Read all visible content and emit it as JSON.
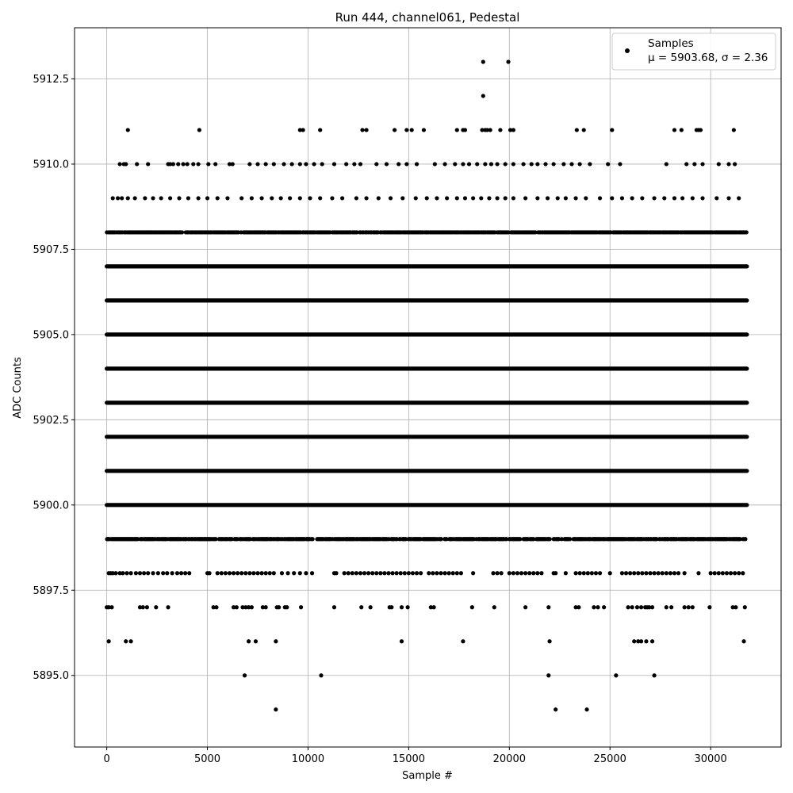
{
  "chart_data": {
    "type": "scatter",
    "title": "Run 444, channel061, Pedestal",
    "xlabel": "Sample #",
    "ylabel": "ADC Counts",
    "xlim": [
      -1600,
      33500
    ],
    "ylim": [
      5892.9,
      5914.0
    ],
    "x_ticks": [
      0,
      5000,
      10000,
      15000,
      20000,
      25000,
      30000
    ],
    "x_tick_labels": [
      "0",
      "5000",
      "10000",
      "15000",
      "20000",
      "25000",
      "30000"
    ],
    "y_ticks": [
      5895.0,
      5897.5,
      5900.0,
      5902.5,
      5905.0,
      5907.5,
      5910.0,
      5912.5
    ],
    "y_tick_labels": [
      "5895.0",
      "5897.5",
      "5900.0",
      "5902.5",
      "5905.0",
      "5907.5",
      "5910.0",
      "5912.5"
    ],
    "grid": true,
    "legend": {
      "position": "top-right",
      "entries": [
        {
          "label": "Samples",
          "stats": "μ = 5903.68, σ = 2.36"
        }
      ]
    },
    "series": [
      {
        "name": "Samples",
        "color": "#000000",
        "x_range": [
          0,
          31800
        ],
        "dense_levels": [
          5900,
          5901,
          5902,
          5903,
          5904,
          5905,
          5906,
          5907
        ],
        "medium_levels": [
          5899,
          5908
        ],
        "sparse_levels": {
          "5898": [
            100,
            200,
            300,
            450,
            650,
            800,
            1000,
            1200,
            1450,
            1650,
            1850,
            2050,
            2300,
            2550,
            2800,
            3000,
            3250,
            3500,
            3700,
            3900,
            4100,
            5000,
            5100,
            5500,
            5700,
            5900,
            6100,
            6300,
            6500,
            6700,
            6900,
            7100,
            7300,
            7500,
            7700,
            7900,
            8100,
            8300,
            8700,
            9000,
            9300,
            9600,
            9900,
            10200,
            11300,
            11400,
            11800,
            12000,
            12200,
            12400,
            12600,
            12800,
            13000,
            13200,
            13400,
            13600,
            13800,
            14000,
            14200,
            14400,
            14600,
            14800,
            15000,
            15200,
            15400,
            15600,
            16000,
            16200,
            16400,
            16600,
            16800,
            17000,
            17200,
            17400,
            17600,
            18200,
            19200,
            19400,
            19600,
            20000,
            20200,
            20400,
            20600,
            20800,
            21000,
            21200,
            21400,
            21600,
            22200,
            22300,
            22800,
            23300,
            23500,
            23700,
            23900,
            24100,
            24300,
            24500,
            25000,
            25600,
            25800,
            26000,
            26200,
            26400,
            26600,
            26800,
            27000,
            27200,
            27400,
            27600,
            27800,
            28000,
            28200,
            28400,
            28700,
            29400,
            30000,
            30200,
            30400,
            30600,
            30800,
            31000,
            31200,
            31400,
            31600
          ],
          "5897": [
            0,
            100,
            250,
            1650,
            1800,
            2000,
            2450,
            3050,
            5300,
            5450,
            6300,
            6450,
            6750,
            6900,
            7050,
            7200,
            7750,
            7900,
            8450,
            8550,
            8850,
            8950,
            9650,
            11300,
            12650,
            13100,
            14050,
            14150,
            14650,
            14950,
            16100,
            16250,
            18150,
            19250,
            20800,
            21950,
            23300,
            23450,
            24200,
            24400,
            24700,
            25900,
            26100,
            26350,
            26550,
            26750,
            26850,
            26950,
            27100,
            27800,
            28050,
            28700,
            28900,
            29100,
            29950,
            31100,
            31250,
            31700
          ],
          "5896": [
            100,
            950,
            1200,
            7050,
            7400,
            8400,
            14650,
            17700,
            22000,
            26200,
            26400,
            26550,
            26800,
            27100,
            31650
          ],
          "5895": [
            6850,
            10650,
            21950,
            25300,
            27200
          ],
          "5894": [
            8400,
            22300,
            23850
          ],
          "5909": [
            300,
            550,
            750,
            1050,
            1400,
            1900,
            2300,
            2700,
            3150,
            3600,
            4050,
            4550,
            5000,
            5500,
            6000,
            6700,
            7200,
            7700,
            8200,
            8650,
            9100,
            9600,
            10100,
            10600,
            11200,
            11700,
            12400,
            12900,
            13500,
            14100,
            14700,
            15350,
            15900,
            16400,
            16900,
            17400,
            17800,
            18200,
            18600,
            19000,
            19400,
            19800,
            20200,
            20800,
            21400,
            21900,
            22400,
            22800,
            23300,
            23800,
            24500,
            25100,
            25600,
            26100,
            26600,
            27200,
            27700,
            28200,
            28600,
            29100,
            29600,
            30300,
            30900,
            31400
          ],
          "5910": [
            650,
            850,
            950,
            1500,
            2050,
            3050,
            3150,
            3300,
            3550,
            3800,
            4000,
            4300,
            4550,
            5050,
            5400,
            6100,
            6250,
            7100,
            7500,
            7900,
            8300,
            8800,
            9200,
            9600,
            9900,
            10300,
            10700,
            11300,
            11900,
            12300,
            12600,
            13400,
            13900,
            14500,
            14900,
            15400,
            16300,
            16800,
            17300,
            17700,
            18000,
            18400,
            18800,
            19100,
            19400,
            19800,
            20200,
            20700,
            21100,
            21400,
            21800,
            22200,
            22700,
            23100,
            23500,
            24000,
            24900,
            25500,
            27800,
            28800,
            29200,
            29600,
            30400,
            30900,
            31200
          ],
          "5911": [
            1050,
            4600,
            9600,
            9750,
            10600,
            12700,
            12900,
            14300,
            14900,
            15150,
            15750,
            17400,
            17700,
            17800,
            18650,
            18800,
            18900,
            19050,
            19550,
            20050,
            20200,
            23350,
            23700,
            25100,
            28200,
            28550,
            29300,
            29400,
            29500,
            31150
          ],
          "5912": [
            18700
          ],
          "5913": [
            18700,
            19950
          ]
        }
      }
    ]
  }
}
